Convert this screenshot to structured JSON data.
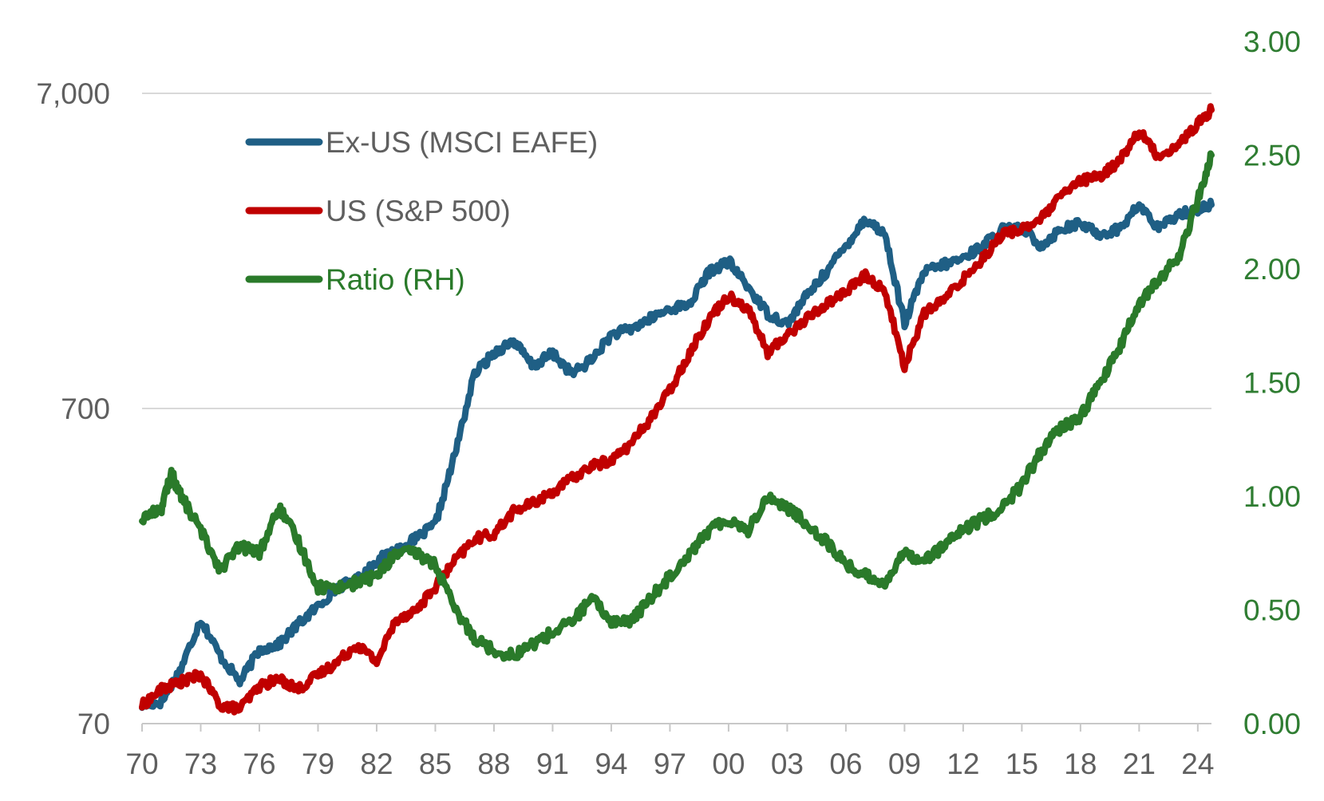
{
  "chart_data": {
    "type": "line",
    "title": "",
    "xlabel": "",
    "ylabel": "",
    "x_tick_labels": [
      "70",
      "73",
      "76",
      "79",
      "82",
      "85",
      "88",
      "91",
      "94",
      "97",
      "00",
      "03",
      "06",
      "09",
      "12",
      "15",
      "18",
      "21",
      "24"
    ],
    "x_range": [
      1970,
      2024.7
    ],
    "y_left": {
      "scale": "log",
      "range": [
        70,
        7000
      ],
      "tick_values": [
        70,
        700,
        7000
      ],
      "tick_labels": [
        "70",
        "700",
        "7,000"
      ]
    },
    "y_right": {
      "scale": "linear",
      "range": [
        0,
        3
      ],
      "tick_values": [
        0,
        0.5,
        1,
        1.5,
        2,
        2.5,
        3
      ],
      "tick_labels": [
        "0.00",
        "0.50",
        "1.00",
        "1.50",
        "2.00",
        "2.50",
        "3.00"
      ]
    },
    "grid": "horizontal",
    "legend_position": "top-left",
    "colors": {
      "exus": "#1f5f85",
      "us": "#c00000",
      "ratio": "#2a7a2a",
      "axis_left": "#5f5f5f",
      "axis_right": "#2f7d32",
      "grid": "#d9d9d9"
    },
    "series": [
      {
        "key": "exus",
        "name": "Ex-US (MSCI EAFE)",
        "axis": "left",
        "points": [
          [
            1970,
            80
          ],
          [
            1971,
            82
          ],
          [
            1972,
            105
          ],
          [
            1973,
            150
          ],
          [
            1974,
            115
          ],
          [
            1975,
            95
          ],
          [
            1976,
            120
          ],
          [
            1977,
            125
          ],
          [
            1978,
            145
          ],
          [
            1979,
            165
          ],
          [
            1980,
            190
          ],
          [
            1981,
            200
          ],
          [
            1982,
            230
          ],
          [
            1983,
            250
          ],
          [
            1984,
            270
          ],
          [
            1985,
            300
          ],
          [
            1986,
            500
          ],
          [
            1987,
            900
          ],
          [
            1988,
            1050
          ],
          [
            1989,
            1150
          ],
          [
            1990,
            950
          ],
          [
            1991,
            1050
          ],
          [
            1992,
            900
          ],
          [
            1993,
            1000
          ],
          [
            1994,
            1200
          ],
          [
            1995,
            1250
          ],
          [
            1996,
            1350
          ],
          [
            1997,
            1450
          ],
          [
            1998,
            1500
          ],
          [
            1999,
            1900
          ],
          [
            2000,
            2050
          ],
          [
            2001,
            1700
          ],
          [
            2002,
            1400
          ],
          [
            2003,
            1300
          ],
          [
            2004,
            1600
          ],
          [
            2005,
            1900
          ],
          [
            2006,
            2300
          ],
          [
            2007,
            2800
          ],
          [
            2008,
            2500
          ],
          [
            2009,
            1300
          ],
          [
            2010,
            1900
          ],
          [
            2011,
            2000
          ],
          [
            2012,
            2100
          ],
          [
            2013,
            2300
          ],
          [
            2014,
            2600
          ],
          [
            2015,
            2600
          ],
          [
            2016,
            2300
          ],
          [
            2017,
            2600
          ],
          [
            2018,
            2700
          ],
          [
            2019,
            2500
          ],
          [
            2020,
            2600
          ],
          [
            2021,
            3100
          ],
          [
            2022,
            2600
          ],
          [
            2023,
            2900
          ],
          [
            2024,
            3000
          ],
          [
            2024.7,
            3100
          ]
        ]
      },
      {
        "key": "us",
        "name": "US (S&P 500)",
        "axis": "left",
        "points": [
          [
            1970,
            80
          ],
          [
            1971,
            90
          ],
          [
            1972,
            95
          ],
          [
            1973,
            100
          ],
          [
            1974,
            80
          ],
          [
            1975,
            78
          ],
          [
            1976,
            92
          ],
          [
            1977,
            97
          ],
          [
            1978,
            90
          ],
          [
            1979,
            100
          ],
          [
            1980,
            110
          ],
          [
            1981,
            125
          ],
          [
            1982,
            110
          ],
          [
            1983,
            150
          ],
          [
            1984,
            160
          ],
          [
            1985,
            190
          ],
          [
            1986,
            230
          ],
          [
            1987,
            270
          ],
          [
            1988,
            280
          ],
          [
            1989,
            330
          ],
          [
            1990,
            350
          ],
          [
            1991,
            380
          ],
          [
            1992,
            420
          ],
          [
            1993,
            460
          ],
          [
            1994,
            480
          ],
          [
            1995,
            540
          ],
          [
            1996,
            650
          ],
          [
            1997,
            800
          ],
          [
            1998,
            1050
          ],
          [
            1999,
            1350
          ],
          [
            2000,
            1600
          ],
          [
            2001,
            1450
          ],
          [
            2002,
            1050
          ],
          [
            2003,
            1200
          ],
          [
            2004,
            1350
          ],
          [
            2005,
            1500
          ],
          [
            2006,
            1650
          ],
          [
            2007,
            1850
          ],
          [
            2008,
            1650
          ],
          [
            2009,
            950
          ],
          [
            2010,
            1400
          ],
          [
            2011,
            1550
          ],
          [
            2012,
            1800
          ],
          [
            2013,
            2100
          ],
          [
            2014,
            2500
          ],
          [
            2015,
            2600
          ],
          [
            2016,
            2800
          ],
          [
            2017,
            3300
          ],
          [
            2018,
            3700
          ],
          [
            2019,
            3800
          ],
          [
            2020,
            4300
          ],
          [
            2021,
            5300
          ],
          [
            2022,
            4400
          ],
          [
            2023,
            4800
          ],
          [
            2024,
            5600
          ],
          [
            2024.7,
            6200
          ]
        ]
      },
      {
        "key": "ratio",
        "name": "Ratio (RH)",
        "axis": "right",
        "points": [
          [
            1970,
            0.9
          ],
          [
            1971,
            0.95
          ],
          [
            1971.5,
            1.1
          ],
          [
            1972,
            1.0
          ],
          [
            1973,
            0.85
          ],
          [
            1974,
            0.68
          ],
          [
            1975,
            0.78
          ],
          [
            1976,
            0.75
          ],
          [
            1977,
            0.95
          ],
          [
            1978,
            0.8
          ],
          [
            1979,
            0.6
          ],
          [
            1980,
            0.6
          ],
          [
            1981,
            0.62
          ],
          [
            1982,
            0.65
          ],
          [
            1983,
            0.75
          ],
          [
            1984,
            0.75
          ],
          [
            1985,
            0.7
          ],
          [
            1986,
            0.5
          ],
          [
            1987,
            0.38
          ],
          [
            1988,
            0.32
          ],
          [
            1989,
            0.3
          ],
          [
            1990,
            0.35
          ],
          [
            1991,
            0.4
          ],
          [
            1992,
            0.45
          ],
          [
            1993,
            0.55
          ],
          [
            1994,
            0.45
          ],
          [
            1995,
            0.45
          ],
          [
            1996,
            0.55
          ],
          [
            1997,
            0.65
          ],
          [
            1998,
            0.75
          ],
          [
            1999,
            0.85
          ],
          [
            2000,
            0.9
          ],
          [
            2001,
            0.85
          ],
          [
            2002,
            1.0
          ],
          [
            2003,
            0.95
          ],
          [
            2004,
            0.88
          ],
          [
            2005,
            0.8
          ],
          [
            2006,
            0.7
          ],
          [
            2007,
            0.65
          ],
          [
            2008,
            0.62
          ],
          [
            2009,
            0.75
          ],
          [
            2010,
            0.72
          ],
          [
            2011,
            0.78
          ],
          [
            2012,
            0.85
          ],
          [
            2013,
            0.9
          ],
          [
            2014,
            0.95
          ],
          [
            2015,
            1.05
          ],
          [
            2016,
            1.2
          ],
          [
            2017,
            1.3
          ],
          [
            2018,
            1.35
          ],
          [
            2019,
            1.5
          ],
          [
            2020,
            1.65
          ],
          [
            2021,
            1.85
          ],
          [
            2022,
            1.95
          ],
          [
            2023,
            2.05
          ],
          [
            2024,
            2.3
          ],
          [
            2024.7,
            2.5
          ]
        ]
      }
    ]
  }
}
